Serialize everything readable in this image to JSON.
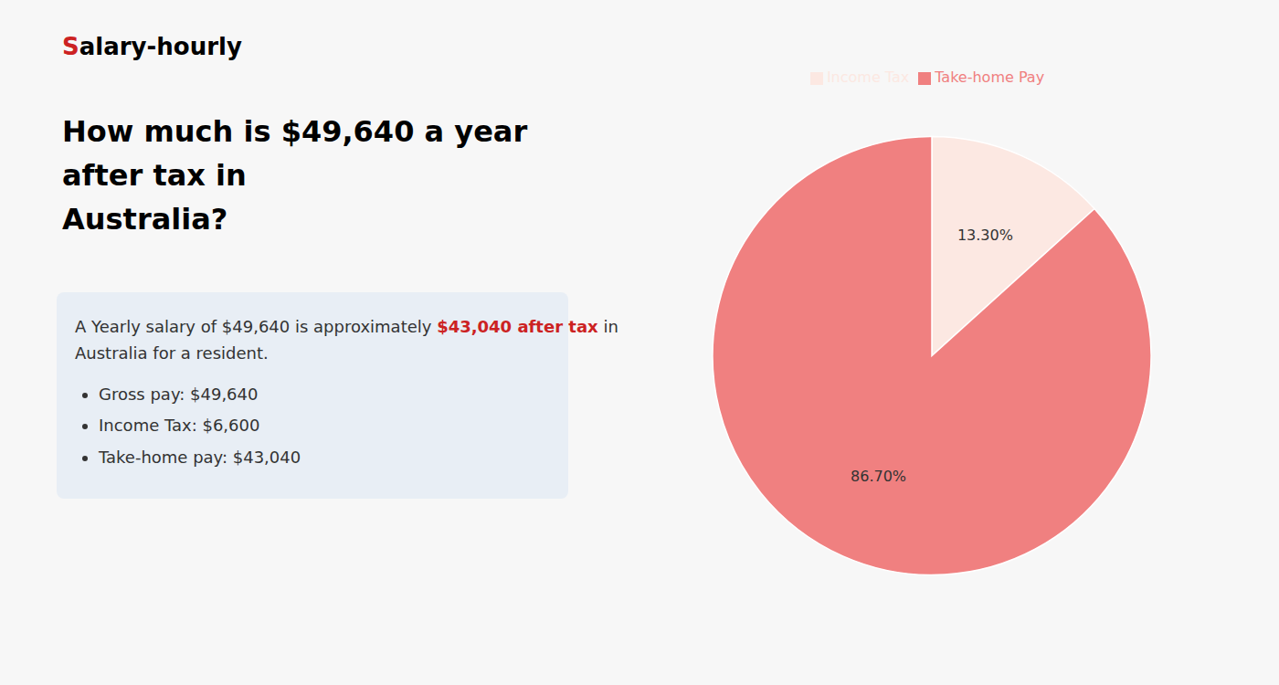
{
  "chart_data": {
    "type": "pie",
    "title": "How much is $49,640 a year after tax in\nAustralia?",
    "categories": [
      "Income Tax",
      "Take-home Pay"
    ],
    "values": [
      13.3,
      86.7
    ],
    "value_labels": [
      "13.30%",
      "86.70%"
    ],
    "colors": [
      "#fce8e2",
      "#f08080"
    ],
    "data_labels": true,
    "legend": "top",
    "annotations": [
      [
        {
          "text": "S",
          "color": "#cc2222"
        },
        {
          "text": "alary-hourly"
        }
      ],
      [
        {
          "text": "A Yearly salary of $49,640 is approximately "
        },
        {
          "text": "$43,040 after tax",
          "color": "#cc2222"
        },
        {
          "text": " in"
        }
      ],
      [
        {
          "text": "Australia for a resident."
        }
      ],
      [
        {
          "text": "Gross pay: $49,640"
        }
      ],
      [
        {
          "text": "Income Tax: $6,600"
        }
      ],
      [
        {
          "text": "Take-home pay: $43,040"
        }
      ]
    ]
  }
}
